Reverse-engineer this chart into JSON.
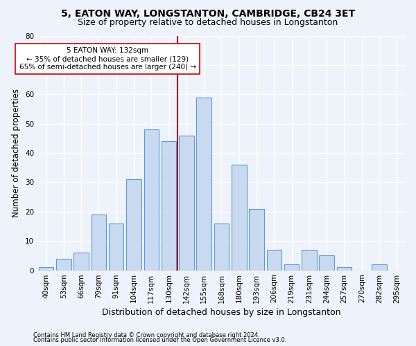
{
  "title": "5, EATON WAY, LONGSTANTON, CAMBRIDGE, CB24 3ET",
  "subtitle": "Size of property relative to detached houses in Longstanton",
  "xlabel": "Distribution of detached houses by size in Longstanton",
  "ylabel": "Number of detached properties",
  "footnote1": "Contains HM Land Registry data © Crown copyright and database right 2024.",
  "footnote2": "Contains public sector information licensed under the Open Government Licence v3.0.",
  "bins": [
    "40sqm",
    "53sqm",
    "66sqm",
    "79sqm",
    "91sqm",
    "104sqm",
    "117sqm",
    "130sqm",
    "142sqm",
    "155sqm",
    "168sqm",
    "180sqm",
    "193sqm",
    "206sqm",
    "219sqm",
    "231sqm",
    "244sqm",
    "257sqm",
    "270sqm",
    "282sqm",
    "295sqm"
  ],
  "bar_values": [
    1,
    4,
    6,
    19,
    16,
    31,
    48,
    44,
    46,
    59,
    16,
    36,
    21,
    7,
    2,
    7,
    5,
    1,
    0,
    2,
    0
  ],
  "bar_color": "#c8d9f0",
  "bar_edge_color": "#5b9bd5",
  "background_color": "#eef2fa",
  "grid_color": "#ffffff",
  "vline_color": "#aa0000",
  "annotation_text": "5 EATON WAY: 132sqm\n← 35% of detached houses are smaller (129)\n65% of semi-detached houses are larger (240) →",
  "annotation_box_color": "#ffffff",
  "annotation_box_edge": "#cc0000",
  "ylim": [
    0,
    80
  ],
  "yticks": [
    0,
    10,
    20,
    30,
    40,
    50,
    60,
    70,
    80
  ],
  "title_fontsize": 10,
  "subtitle_fontsize": 9,
  "xlabel_fontsize": 9,
  "ylabel_fontsize": 8.5,
  "tick_fontsize": 7.5,
  "annot_fontsize": 7.5,
  "footnote_fontsize": 6
}
